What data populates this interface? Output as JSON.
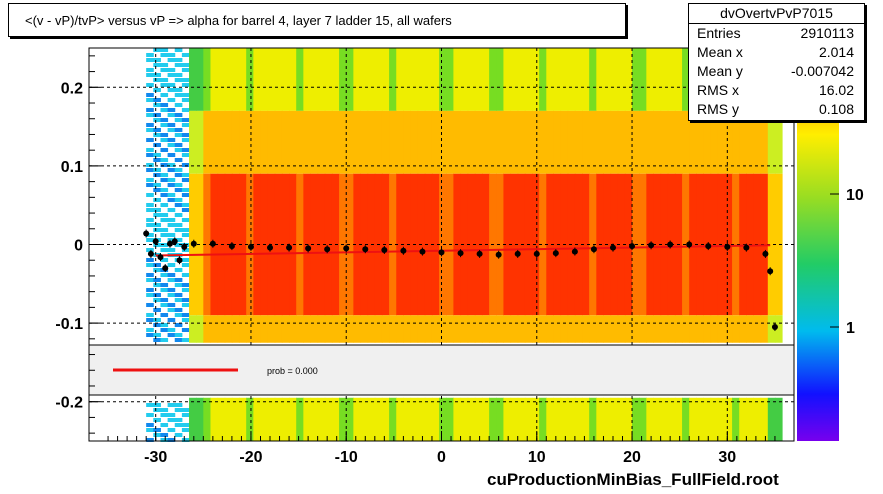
{
  "title": "<(v - vP)/tvP>  versus   vP => alpha for barrel 4, layer 7 ladder 15, all wafers",
  "stats": {
    "name": "dvOvertvPvP7015",
    "rows": [
      {
        "label": "Entries",
        "value": "2910113"
      },
      {
        "label": "Mean x",
        "value": "2.014"
      },
      {
        "label": "Mean y",
        "value": "-0.007042"
      },
      {
        "label": "RMS x",
        "value": "16.02"
      },
      {
        "label": "RMS y",
        "value": "0.108"
      }
    ]
  },
  "footer": "cuProductionMinBias_FullField.root",
  "legend": {
    "text": "prob = 0.000",
    "line_color": "#ee1111"
  },
  "chart_data": {
    "type": "heatmap",
    "xlim": [
      -37,
      37
    ],
    "ylim": [
      -0.25,
      0.25
    ],
    "x_ticks": [
      -30,
      -20,
      -10,
      0,
      10,
      20,
      30
    ],
    "x_tick_labels": [
      "-30",
      "-20",
      "-10",
      "0",
      "10",
      "20",
      "30"
    ],
    "y_ticks": [
      0.2,
      0.1,
      0,
      -0.1,
      -0.2
    ],
    "y_tick_labels": [
      "0.2",
      "0.1",
      "0",
      "-0.1",
      "-0.2"
    ],
    "z_tick_labels": [
      "10",
      "1"
    ],
    "grid": true,
    "legend_band_y": [
      -0.125,
      -0.195
    ],
    "profile": {
      "x": [
        -31,
        -30.5,
        -30,
        -29.5,
        -29,
        -28.5,
        -28,
        -27.5,
        -27,
        -26,
        -24,
        -22,
        -20,
        -18,
        -16,
        -14,
        -12,
        -10,
        -8,
        -6,
        -4,
        -2,
        0,
        2,
        4,
        6,
        8,
        10,
        12,
        14,
        16,
        18,
        20,
        22,
        24,
        26,
        28,
        30,
        32,
        34,
        34.5,
        35
      ],
      "y": [
        0.014,
        -0.012,
        0.004,
        -0.016,
        -0.03,
        0.001,
        0.004,
        -0.02,
        -0.003,
        0.001,
        0.001,
        -0.002,
        -0.003,
        -0.004,
        -0.004,
        -0.005,
        -0.006,
        -0.005,
        -0.006,
        -0.007,
        -0.008,
        -0.009,
        -0.01,
        -0.011,
        -0.012,
        -0.013,
        -0.012,
        -0.012,
        -0.011,
        -0.009,
        -0.006,
        -0.004,
        -0.002,
        -0.001,
        0.0,
        0.0,
        -0.002,
        -0.003,
        -0.004,
        -0.012,
        -0.034,
        -0.105
      ]
    },
    "fit_line": {
      "x": [
        -30,
        34.5
      ],
      "y": [
        -0.014,
        -0.001
      ]
    },
    "colors": {
      "fit": "#ee1111",
      "profile": "#000000"
    }
  }
}
